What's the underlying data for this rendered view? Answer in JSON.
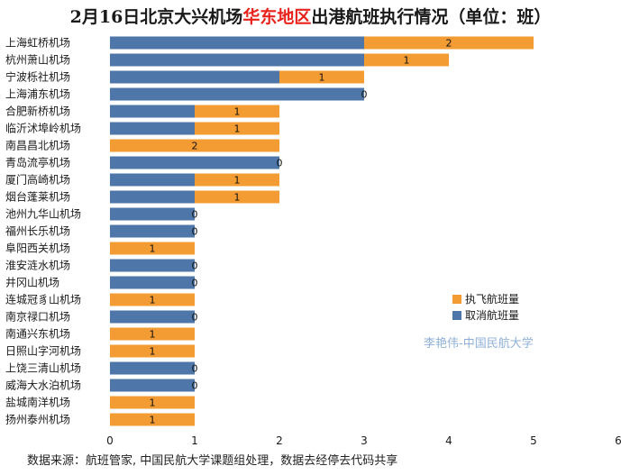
{
  "title": {
    "prefix": "2月16日北京大兴机场",
    "highlight": "华东地区",
    "suffix": "出港航班执行情况（单位：班）"
  },
  "footer": "数据来源：航班管家, 中国民航大学课题组处理，数据去经停去代码共享",
  "watermark": "李艳伟-中国民航大学",
  "colors": {
    "executed": "#f39c33",
    "cancelled": "#4f76a8"
  },
  "chart_data": {
    "type": "bar",
    "orientation": "horizontal",
    "stacked": true,
    "categories": [
      "上海虹桥机场",
      "杭州萧山机场",
      "宁波栎社机场",
      "上海浦东机场",
      "合肥新桥机场",
      "临沂沭埠岭机场",
      "南昌昌北机场",
      "青岛流亭机场",
      "厦门高崎机场",
      "烟台蓬莱机场",
      "池州九华山机场",
      "福州长乐机场",
      "阜阳西关机场",
      "淮安涟水机场",
      "井冈山机场",
      "连城冠豸山机场",
      "南京禄口机场",
      "南通兴东机场",
      "日照山字河机场",
      "上饶三清山机场",
      "威海大水泊机场",
      "盐城南洋机场",
      "扬州泰州机场"
    ],
    "series": [
      {
        "name": "取消航班量",
        "values": [
          3,
          3,
          2,
          3,
          1,
          1,
          0,
          2,
          1,
          1,
          1,
          1,
          0,
          1,
          1,
          0,
          1,
          0,
          0,
          1,
          1,
          0,
          0
        ]
      },
      {
        "name": "执飞航班量",
        "values": [
          2,
          1,
          1,
          0,
          1,
          1,
          2,
          0,
          1,
          1,
          0,
          0,
          1,
          0,
          0,
          1,
          0,
          1,
          1,
          0,
          0,
          1,
          1
        ]
      }
    ],
    "data_labels": [
      "2",
      "1",
      "1",
      "0",
      "1",
      "1",
      "2",
      "0",
      "1",
      "1",
      "0",
      "0",
      "1",
      "0",
      "0",
      "1",
      "0",
      "1",
      "1",
      "0",
      "0",
      "1",
      "1"
    ],
    "xlim": [
      0,
      6
    ],
    "xticks": [
      "0",
      "1",
      "2",
      "3",
      "4",
      "5",
      "6"
    ],
    "grid": false,
    "legend": "right"
  }
}
